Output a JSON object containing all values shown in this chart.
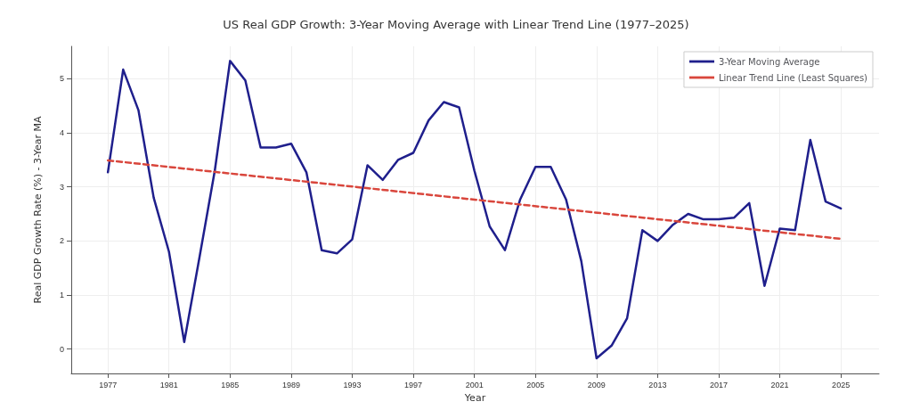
{
  "chart_data": {
    "type": "line",
    "title": "US Real GDP Growth: 3-Year Moving Average with Linear Trend Line (1977–2025)",
    "xlabel": "Year",
    "ylabel": "Real GDP Growth Rate (%) - 3-Year MA",
    "x": [
      1977,
      1978,
      1979,
      1980,
      1981,
      1982,
      1983,
      1984,
      1985,
      1986,
      1987,
      1988,
      1989,
      1990,
      1991,
      1992,
      1993,
      1994,
      1995,
      1996,
      1997,
      1998,
      1999,
      2000,
      2001,
      2002,
      2003,
      2004,
      2005,
      2006,
      2007,
      2008,
      2009,
      2010,
      2011,
      2012,
      2013,
      2014,
      2015,
      2016,
      2017,
      2018,
      2019,
      2020,
      2021,
      2022,
      2023,
      2024,
      2025
    ],
    "series": [
      {
        "name": "3-Year Moving Average",
        "color": "#1f1f8c",
        "line_style": "solid",
        "values": [
          3.27,
          5.17,
          4.42,
          2.8,
          1.8,
          0.13,
          1.7,
          3.3,
          5.33,
          4.97,
          3.73,
          3.73,
          3.8,
          3.27,
          1.83,
          1.77,
          2.03,
          3.4,
          3.13,
          3.5,
          3.63,
          4.23,
          4.57,
          4.47,
          3.3,
          2.27,
          1.83,
          2.77,
          3.37,
          3.37,
          2.77,
          1.63,
          -0.17,
          0.07,
          0.57,
          2.2,
          2.0,
          2.3,
          2.5,
          2.4,
          2.4,
          2.43,
          2.7,
          1.17,
          2.23,
          2.2,
          3.87,
          2.73,
          2.6
        ]
      },
      {
        "name": "Linear Trend Line (Least Squares)",
        "color": "#d9463c",
        "line_style": "dashed",
        "x": [
          1977,
          2025
        ],
        "values": [
          3.49,
          2.04
        ]
      }
    ],
    "xlim": [
      1974.6,
      2027.5
    ],
    "xticks": [
      1977,
      1981,
      1985,
      1989,
      1993,
      1997,
      2001,
      2005,
      2009,
      2013,
      2017,
      2021,
      2025
    ],
    "ylim": [
      -0.45,
      5.6
    ],
    "yticks": [
      0,
      1,
      2,
      3,
      4,
      5
    ],
    "grid": true,
    "legend": "top right",
    "marker": "none"
  }
}
